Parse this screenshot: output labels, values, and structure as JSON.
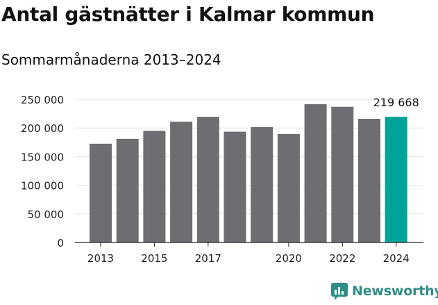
{
  "header": {
    "title": "Antal gästnätter i Kalmar kommun",
    "subtitle": "Sommarmånaderna 2013–2024"
  },
  "chart_data": {
    "type": "bar",
    "categories": [
      "2013",
      "2014",
      "2015",
      "2016",
      "2017",
      "2018",
      "2019",
      "2020",
      "2021",
      "2022",
      "2023",
      "2024"
    ],
    "values": [
      172500,
      181000,
      195000,
      211000,
      219500,
      193500,
      201500,
      189500,
      241500,
      237000,
      216000,
      219668
    ],
    "visible_x_ticks": [
      "2013",
      "2015",
      "2017",
      "2020",
      "2022",
      "2024"
    ],
    "y_ticks": [
      0,
      50000,
      100000,
      150000,
      200000,
      250000
    ],
    "y_tick_labels": [
      "0",
      "50 000",
      "100 000",
      "150 000",
      "200 000",
      "250 000"
    ],
    "ylim": [
      0,
      250000
    ],
    "highlight_index": 11,
    "highlight_label": "219 668",
    "grid": true,
    "colors": {
      "bar": "#6e6d72",
      "highlight": "#00a39a",
      "grid": "#e3e3e3",
      "axis": "#222222"
    }
  },
  "branding": {
    "name": "Newsworthy",
    "icon": "newsworthy-logo-icon",
    "color": "#2f8c86"
  }
}
